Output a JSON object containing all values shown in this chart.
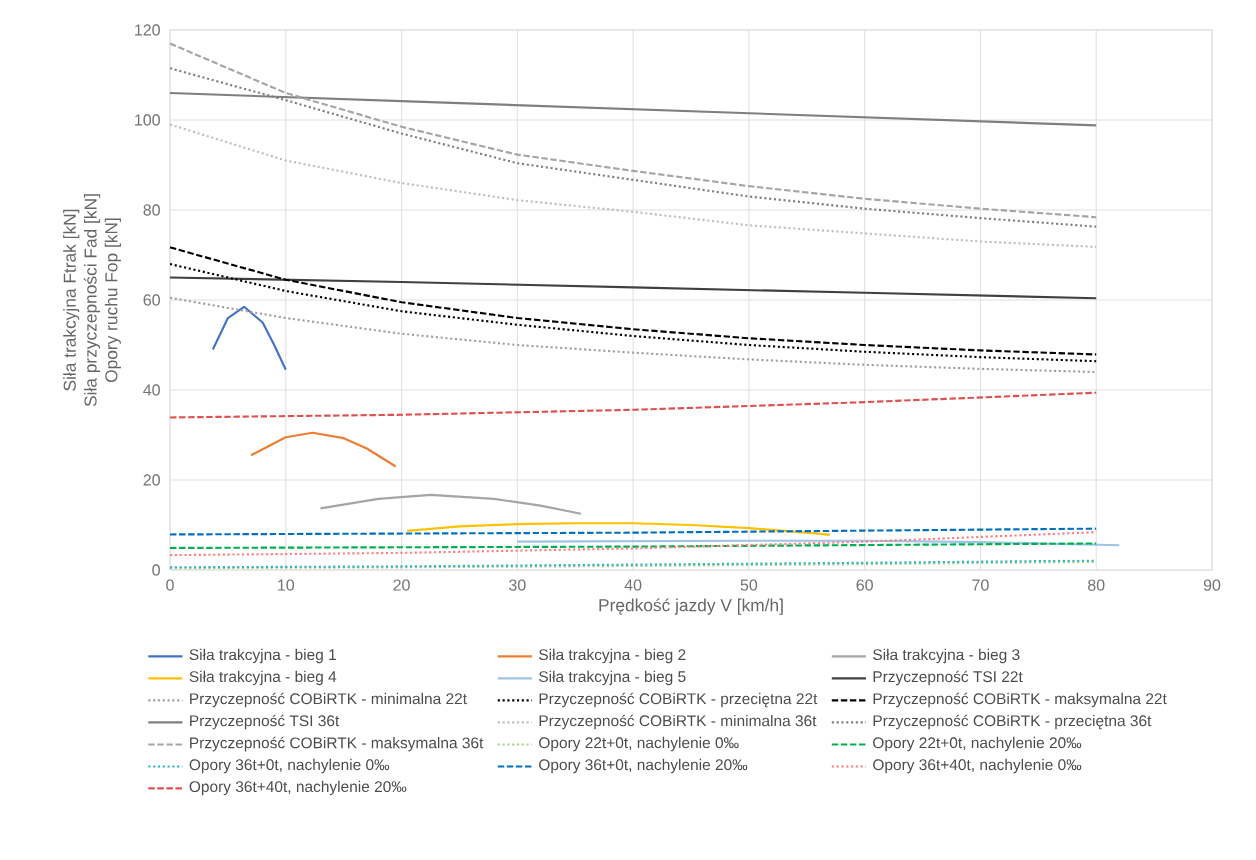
{
  "chart_data": {
    "type": "line",
    "xlabel": "Prędkość jazdy V [km/h]",
    "ylabel": [
      "Siła trakcyjna Ftrak [kN]",
      "Siła przyczepności Fad [kN]",
      "Opory ruchu Fop [kN]"
    ],
    "xlim": [
      0,
      90
    ],
    "xticks": [
      0,
      10,
      20,
      30,
      40,
      50,
      60,
      70,
      80,
      90
    ],
    "ylim": [
      0,
      120
    ],
    "yticks": [
      0,
      20,
      40,
      60,
      80,
      100,
      120
    ],
    "grid": true,
    "legend": "bottom",
    "series": [
      {
        "name": "Siła trakcyjna - bieg 1",
        "color": "#4472c4",
        "line_style": "solid",
        "x": [
          3.7,
          5,
          6.4,
          8,
          9,
          10
        ],
        "values": [
          49,
          56,
          58.5,
          55,
          50,
          44.5
        ]
      },
      {
        "name": "Siła trakcyjna - bieg 2",
        "color": "#ed7d31",
        "line_style": "solid",
        "x": [
          7,
          10,
          12.3,
          15,
          17,
          19.5
        ],
        "values": [
          25.5,
          29.5,
          30.5,
          29.3,
          27,
          23
        ]
      },
      {
        "name": "Siła trakcyjna - bieg 3",
        "color": "#a5a5a5",
        "line_style": "solid",
        "x": [
          13,
          18,
          22.5,
          28,
          32,
          35.5
        ],
        "values": [
          13.7,
          15.8,
          16.7,
          15.8,
          14.3,
          12.5
        ]
      },
      {
        "name": "Siła trakcyjna - bieg 4",
        "color": "#ffc000",
        "line_style": "solid",
        "x": [
          20.5,
          25,
          30,
          35,
          40,
          45,
          50,
          55,
          57
        ],
        "values": [
          8.7,
          9.7,
          10.2,
          10.4,
          10.4,
          10,
          9.3,
          8.3,
          7.8
        ]
      },
      {
        "name": "Siła trakcyjna - bieg 5",
        "color": "#9dc3e6",
        "line_style": "solid",
        "x": [
          30,
          40,
          50,
          60,
          70,
          82
        ],
        "values": [
          6.3,
          6.4,
          6.5,
          6.5,
          6.2,
          5.5
        ]
      },
      {
        "name": "Przyczepność TSI 22t",
        "color": "#404040",
        "line_style": "solid",
        "x": [
          0,
          20,
          40,
          60,
          80
        ],
        "values": [
          65,
          64,
          62.8,
          61.6,
          60.4
        ]
      },
      {
        "name": "Przyczepność COBiRTK - minimalna 22t",
        "color": "#a0a0a0",
        "line_style": "dotted",
        "x": [
          0,
          10,
          20,
          30,
          40,
          50,
          60,
          70,
          80
        ],
        "values": [
          60.5,
          56,
          52.5,
          50,
          48.3,
          46.8,
          45.6,
          44.7,
          44
        ]
      },
      {
        "name": "Przyczepność COBiRTK - przeciętna 22t",
        "color": "#000000",
        "line_style": "dotted",
        "x": [
          0,
          10,
          20,
          30,
          40,
          50,
          60,
          70,
          80
        ],
        "values": [
          68,
          62,
          57.5,
          54.5,
          52,
          50,
          48.5,
          47.3,
          46.4
        ]
      },
      {
        "name": "Przyczepność COBiRTK - maksymalna 22t",
        "color": "#000000",
        "line_style": "dashed",
        "x": [
          0,
          10,
          20,
          30,
          40,
          50,
          60,
          70,
          80
        ],
        "values": [
          71.7,
          64.5,
          59.5,
          56,
          53.5,
          51.5,
          50,
          48.8,
          47.9
        ]
      },
      {
        "name": "Przyczepność TSI 36t",
        "color": "#7f7f7f",
        "line_style": "solid",
        "x": [
          0,
          20,
          40,
          60,
          80
        ],
        "values": [
          106,
          104.2,
          102.4,
          100.6,
          98.8
        ]
      },
      {
        "name": "Przyczepność COBiRTK - minimalna 36t",
        "color": "#bfbfbf",
        "line_style": "dotted",
        "x": [
          0,
          10,
          20,
          30,
          40,
          50,
          60,
          70,
          80
        ],
        "values": [
          99,
          91,
          86,
          82.2,
          79.6,
          76.6,
          74.8,
          73,
          71.8
        ]
      },
      {
        "name": "Przyczepność COBiRTK - przeciętna 36t",
        "color": "#7f7f7f",
        "line_style": "dotted",
        "x": [
          0,
          10,
          20,
          30,
          40,
          50,
          60,
          70,
          80
        ],
        "values": [
          111.5,
          104.4,
          97,
          90.4,
          86.7,
          83,
          80.3,
          78.2,
          76.3
        ]
      },
      {
        "name": "Przyczepność COBiRTK - maksymalna 36t",
        "color": "#a5a5a5",
        "line_style": "dashed",
        "x": [
          0,
          10,
          20,
          30,
          40,
          50,
          60,
          70,
          80
        ],
        "values": [
          117,
          106,
          98.5,
          92.3,
          88.7,
          85.3,
          82.5,
          80.3,
          78.4
        ]
      },
      {
        "name": "Opory 22t+0t, nachylenie 0‰",
        "color": "#a9d18e",
        "line_style": "dotted",
        "x": [
          0,
          20,
          40,
          60,
          80
        ],
        "values": [
          0.4,
          0.6,
          0.9,
          1.3,
          1.8
        ]
      },
      {
        "name": "Opory 22t+0t, nachylenie 20‰",
        "color": "#00b050",
        "line_style": "dashed",
        "x": [
          0,
          40,
          80
        ],
        "values": [
          4.9,
          5.2,
          5.9
        ]
      },
      {
        "name": "Opory 36t+0t, nachylenie 0‰",
        "color": "#2fb5c0",
        "line_style": "dotted",
        "x": [
          0,
          20,
          40,
          60,
          80
        ],
        "values": [
          0.6,
          0.8,
          1.2,
          1.6,
          2.1
        ]
      },
      {
        "name": "Opory 36t+0t, nachylenie 20‰",
        "color": "#0070c0",
        "line_style": "dashed",
        "x": [
          0,
          40,
          80
        ],
        "values": [
          7.9,
          8.3,
          9.2
        ]
      },
      {
        "name": "Opory 36t+40t, nachylenie 0‰",
        "color": "#ff7c80",
        "line_style": "dotted",
        "x": [
          0,
          20,
          40,
          60,
          80
        ],
        "values": [
          3.3,
          3.8,
          4.8,
          6.3,
          8.4
        ]
      },
      {
        "name": "Opory 36t+40t, nachylenie 20‰",
        "color": "#e05050",
        "line_style": "dashed",
        "x": [
          0,
          20,
          40,
          60,
          80
        ],
        "values": [
          33.9,
          34.5,
          35.6,
          37.3,
          39.4
        ]
      }
    ]
  }
}
